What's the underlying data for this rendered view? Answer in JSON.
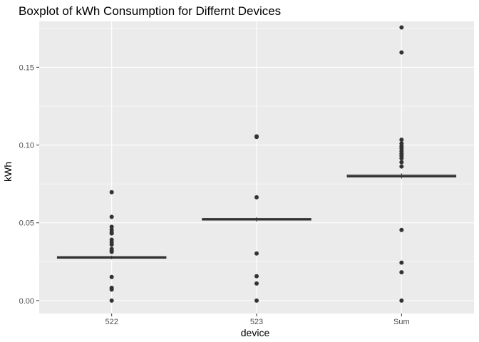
{
  "chart_data": {
    "type": "boxplot",
    "title": "Boxplot of kWh Consumption for Differnt Devices",
    "xlabel": "device",
    "ylabel": "kWh",
    "categories": [
      "522",
      "523",
      "Sum"
    ],
    "ylim": [
      -0.0083,
      0.1795
    ],
    "yticks": [
      0.0,
      0.05,
      0.1,
      0.15
    ],
    "ytick_labels": [
      "0.00",
      "0.05",
      "0.10",
      "0.15"
    ],
    "grid": true,
    "colors": {
      "panel": "#ebebeb",
      "grid_major": "#ffffff",
      "box_fill": "#ffffff",
      "box_line": "#333333",
      "outlier": "#333333",
      "tick": "#333333"
    },
    "boxes": [
      {
        "category": "522",
        "q1": 0.0272,
        "median": 0.0277,
        "q3": 0.0283,
        "whisker_low": 0.0266,
        "whisker_high": 0.0289,
        "outliers": [
          0.0697,
          0.0538,
          0.0474,
          0.0455,
          0.044,
          0.0432,
          0.0391,
          0.0375,
          0.036,
          0.0332,
          0.032,
          0.0313,
          0.0152,
          0.0082,
          0.0071,
          0.0
        ]
      },
      {
        "category": "523",
        "q1": 0.0517,
        "median": 0.0522,
        "q3": 0.0528,
        "whisker_low": 0.0508,
        "whisker_high": 0.0536,
        "outliers": [
          0.1056,
          0.1052,
          0.0664,
          0.0303,
          0.0157,
          0.011,
          0.0
        ]
      },
      {
        "category": "Sum",
        "q1": 0.0794,
        "median": 0.08,
        "q3": 0.0807,
        "whisker_low": 0.0785,
        "whisker_high": 0.0818,
        "outliers": [
          0.1756,
          0.1595,
          0.1034,
          0.101,
          0.0993,
          0.0978,
          0.0961,
          0.0945,
          0.0931,
          0.0915,
          0.089,
          0.0862,
          0.0454,
          0.0244,
          0.0182,
          0.0
        ]
      }
    ]
  }
}
